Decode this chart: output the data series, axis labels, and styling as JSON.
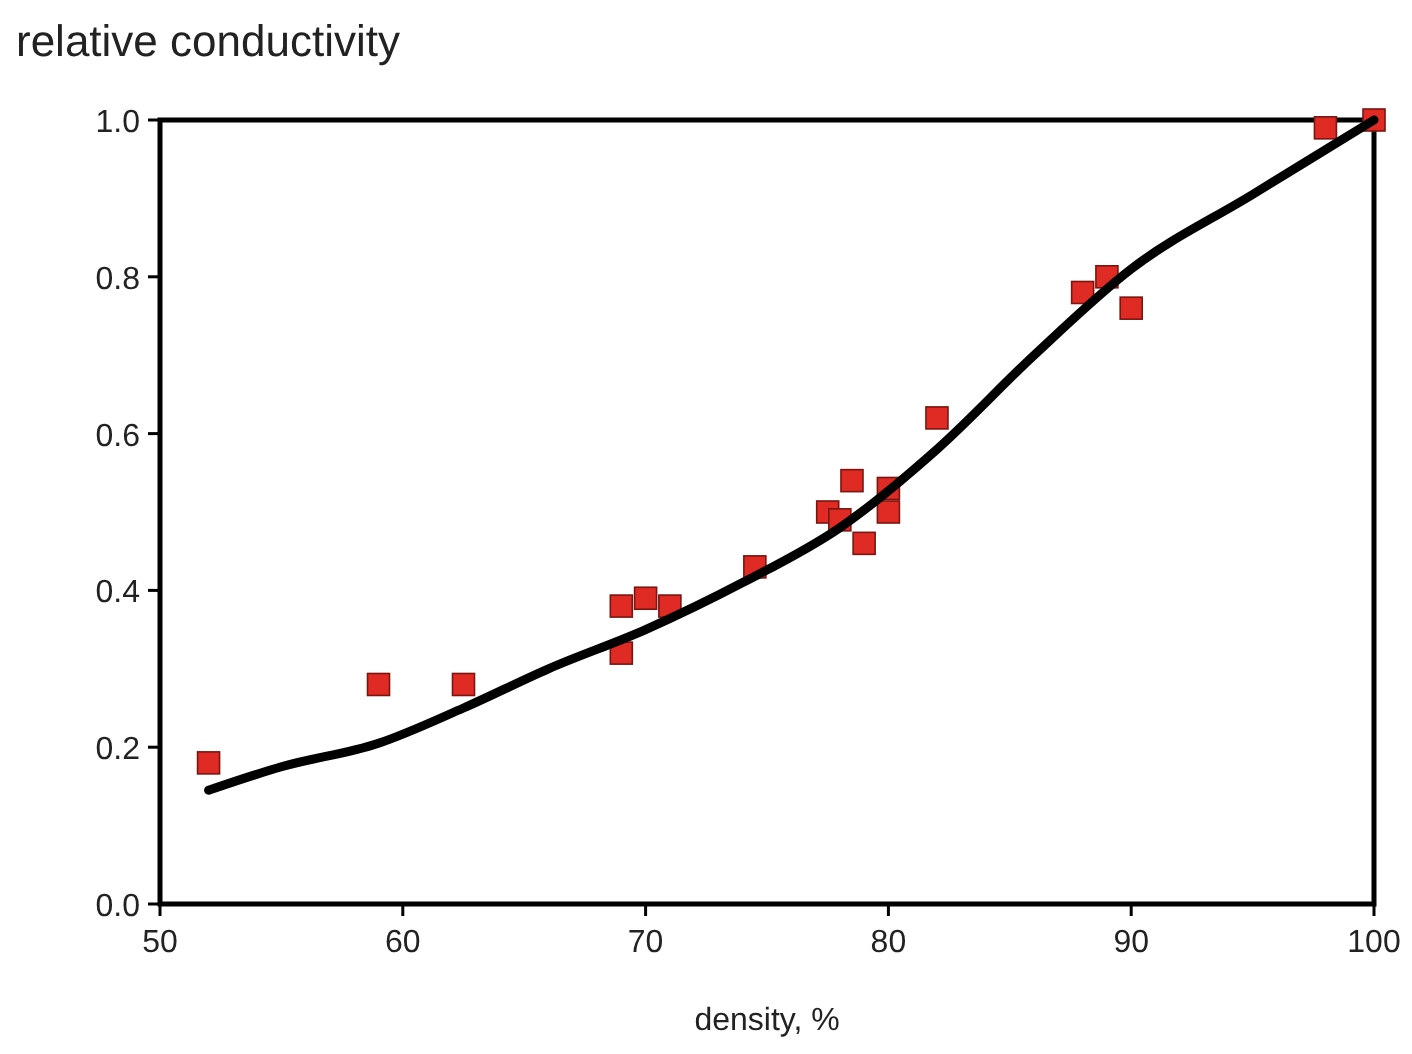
{
  "chart_data": {
    "type": "scatter",
    "ylabel": "relative conductivity",
    "xlabel": "density, %",
    "xlim": [
      50,
      100
    ],
    "ylim": [
      0,
      1
    ],
    "xticks": [
      50,
      60,
      70,
      80,
      90,
      100
    ],
    "yticks": [
      {
        "value": 0,
        "label": "0.0"
      },
      {
        "value": 0.2,
        "label": "0.2"
      },
      {
        "value": 0.4,
        "label": "0.4"
      },
      {
        "value": 0.6,
        "label": "0.6"
      },
      {
        "value": 0.8,
        "label": "0.8"
      },
      {
        "value": 1,
        "label": "1.0"
      }
    ],
    "grid": false,
    "marker": "square",
    "series": [
      {
        "color": "#e02a24",
        "x": [
          52,
          59,
          62.5,
          69,
          69,
          70,
          71,
          74.5,
          77.5,
          78,
          78.5,
          79,
          80,
          80,
          82,
          88,
          89,
          90,
          98,
          100
        ],
        "values": [
          0.18,
          0.28,
          0.28,
          0.38,
          0.32,
          0.39,
          0.38,
          0.43,
          0.5,
          0.49,
          0.54,
          0.46,
          0.53,
          0.5,
          0.62,
          0.78,
          0.8,
          0.76,
          0.99,
          1.0
        ]
      },
      {
        "type": "line",
        "color": "#000000",
        "marker": "none",
        "line_style": "solid",
        "x": [
          52,
          55,
          59,
          62.5,
          66,
          70,
          74,
          78,
          82,
          86,
          90,
          95,
          100
        ],
        "values": [
          0.145,
          0.175,
          0.205,
          0.25,
          0.3,
          0.35,
          0.41,
          0.48,
          0.58,
          0.7,
          0.81,
          0.905,
          1.0
        ]
      }
    ]
  }
}
